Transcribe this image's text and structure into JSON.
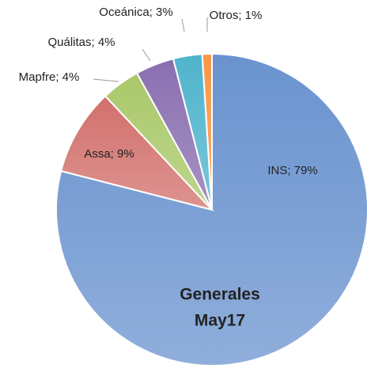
{
  "chart_data": {
    "type": "pie",
    "title": [
      "Generales",
      "May17"
    ],
    "categories": [
      "INS",
      "Assa",
      "Mapfre",
      "Quálitas",
      "Oceánica",
      "Otros"
    ],
    "values": [
      79,
      9,
      4,
      4,
      3,
      1
    ],
    "value_labels": [
      "INS; 79%",
      "Assa; 9%",
      "Mapfre; 4%",
      "Quálitas; 4%",
      "Oceánica; 3%",
      "Otros; 1%"
    ],
    "colors": [
      "#6a93cf",
      "#d2706c",
      "#a9c86a",
      "#8a6fb0",
      "#4fb4cc",
      "#f79646"
    ]
  }
}
